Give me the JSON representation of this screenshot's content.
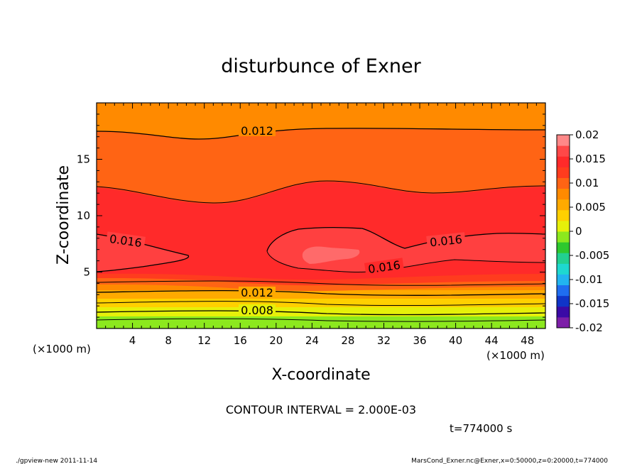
{
  "chart_data": {
    "type": "contour",
    "title": "disturbunce of Exner",
    "xlabel": "X-coordinate",
    "ylabel": "Z-coordinate",
    "x_unit_left": "(×1000 m)",
    "x_unit_right": "(×1000 m)",
    "xlim": [
      0,
      50
    ],
    "ylim": [
      0,
      20
    ],
    "xticks": [
      4,
      8,
      12,
      16,
      20,
      24,
      28,
      32,
      36,
      40,
      44,
      48
    ],
    "yticks": [
      5,
      10,
      15
    ],
    "contour_interval_text": "CONTOUR INTERVAL = 2.000E-03",
    "time_text": "t=774000 s",
    "colorbar": {
      "ticks": [
        "0.02",
        "0.015",
        "0.01",
        "0.005",
        "0",
        "-0.005",
        "-0.01",
        "-0.015",
        "-0.02"
      ],
      "range": [
        -0.02,
        0.02
      ],
      "colors": [
        "#7d1ea8",
        "#3a0aa6",
        "#1034c8",
        "#1f6df0",
        "#22b4f0",
        "#1ed8d0",
        "#22d090",
        "#2ec82e",
        "#8ce81e",
        "#e6f00a",
        "#ffd000",
        "#ffaa00",
        "#ff8a00",
        "#ff6414",
        "#ff3c1e",
        "#ff2a2a",
        "#ff4848",
        "#ff8888"
      ]
    },
    "contour_labels": [
      "0.012",
      "0.016",
      "0.016",
      "0.016",
      "0.012",
      "0.008"
    ]
  },
  "footer": {
    "left": "./gpview-new  2011-11-14",
    "right": "MarsCond_Exner.nc@Exner,x=0:50000,z=0:20000,t=774000"
  }
}
